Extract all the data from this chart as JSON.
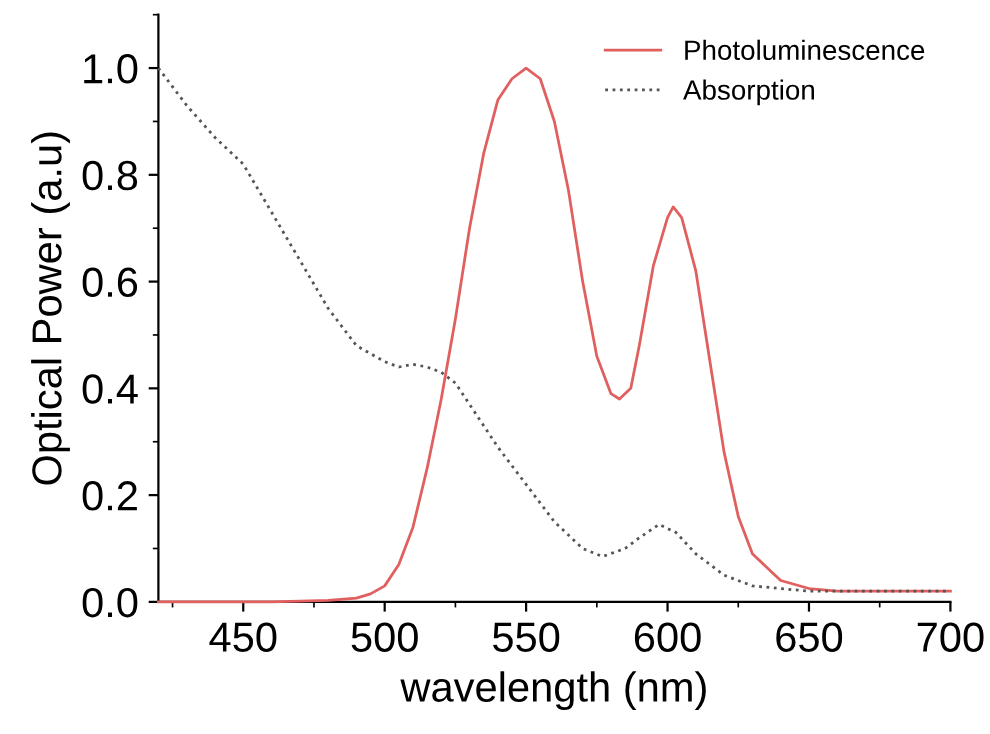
{
  "chart_data": {
    "type": "line",
    "xlabel": "wavelength (nm)",
    "ylabel": "Optical Power (a.u)",
    "xlim": [
      420,
      700
    ],
    "ylim": [
      0,
      1.1
    ],
    "xticks": [
      450,
      500,
      550,
      600,
      650,
      700
    ],
    "yticks": [
      {
        "value": 0,
        "label": "0.0"
      },
      0.2,
      0.4,
      0.6,
      0.8,
      {
        "value": 1,
        "label": "1.0"
      }
    ],
    "grid": false,
    "legend": "top right",
    "series": [
      {
        "name": "Photoluminescence",
        "color": "#e06060",
        "line_style": "solid",
        "x": [
          420,
          440,
          460,
          480,
          490,
          495,
          500,
          505,
          510,
          515,
          520,
          525,
          530,
          535,
          540,
          545,
          550,
          555,
          560,
          565,
          570,
          575,
          580,
          583,
          587,
          590,
          595,
          600,
          602,
          605,
          610,
          615,
          620,
          625,
          630,
          640,
          650,
          660,
          680,
          700
        ],
        "values": [
          0,
          0,
          0,
          0.003,
          0.007,
          0.015,
          0.03,
          0.07,
          0.14,
          0.25,
          0.38,
          0.53,
          0.7,
          0.84,
          0.94,
          0.98,
          1.0,
          0.98,
          0.9,
          0.77,
          0.6,
          0.46,
          0.39,
          0.38,
          0.4,
          0.48,
          0.63,
          0.72,
          0.74,
          0.72,
          0.62,
          0.45,
          0.28,
          0.16,
          0.09,
          0.04,
          0.025,
          0.02,
          0.02,
          0.02
        ]
      },
      {
        "name": "Absorption",
        "color": "#555555",
        "line_style": "dotted",
        "x": [
          420,
          430,
          440,
          450,
          460,
          470,
          480,
          490,
          500,
          505,
          510,
          515,
          520,
          525,
          530,
          540,
          550,
          560,
          570,
          577,
          585,
          590,
          597,
          603,
          610,
          620,
          630,
          640,
          650,
          680,
          700
        ],
        "values": [
          1.0,
          0.93,
          0.87,
          0.82,
          0.73,
          0.64,
          0.55,
          0.48,
          0.45,
          0.44,
          0.445,
          0.44,
          0.43,
          0.41,
          0.37,
          0.29,
          0.22,
          0.15,
          0.1,
          0.085,
          0.1,
          0.12,
          0.145,
          0.13,
          0.09,
          0.05,
          0.03,
          0.025,
          0.02,
          0.02,
          0.02
        ]
      }
    ]
  }
}
